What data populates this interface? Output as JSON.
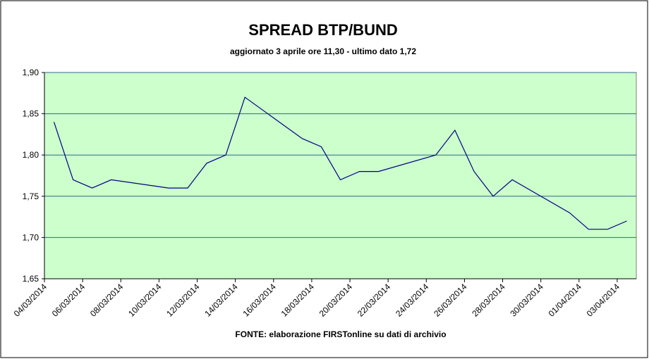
{
  "chart_data": {
    "type": "line",
    "title": "SPREAD BTP/BUND",
    "subtitle": "aggiornato 3 aprile ore 11,30 - ultimo dato 1,72",
    "source": "FONTE:  elaborazione FIRSTonline su dati di archivio",
    "x": [
      "04/03/2014",
      "05/03/2014",
      "06/03/2014",
      "07/03/2014",
      "10/03/2014",
      "11/03/2014",
      "12/03/2014",
      "13/03/2014",
      "14/03/2014",
      "17/03/2014",
      "18/03/2014",
      "19/03/2014",
      "20/03/2014",
      "21/03/2014",
      "24/03/2014",
      "25/03/2014",
      "26/03/2014",
      "27/03/2014",
      "28/03/2014",
      "31/03/2014",
      "01/04/2014",
      "02/04/2014",
      "03/04/2014"
    ],
    "series": [
      {
        "color": "#000080",
        "values": [
          1.84,
          1.77,
          1.76,
          1.77,
          1.76,
          1.76,
          1.79,
          1.8,
          1.87,
          1.82,
          1.81,
          1.77,
          1.78,
          1.78,
          1.8,
          1.83,
          1.78,
          1.75,
          1.77,
          1.73,
          1.71,
          1.71,
          1.72
        ]
      }
    ],
    "xlim": [
      "04/03/2014",
      "04/04/2014"
    ],
    "xticks": [
      "04/03/2014",
      "06/03/2014",
      "08/03/2014",
      "10/03/2014",
      "12/03/2014",
      "14/03/2014",
      "16/03/2014",
      "18/03/2014",
      "20/03/2014",
      "22/03/2014",
      "24/03/2014",
      "26/03/2014",
      "28/03/2014",
      "30/03/2014",
      "01/04/2014",
      "03/04/2014"
    ],
    "ylim": [
      1.65,
      1.9
    ],
    "yticks": [
      {
        "value": 1.65,
        "label": "1,65"
      },
      {
        "value": 1.7,
        "label": "1,70"
      },
      {
        "value": 1.75,
        "label": "1,75"
      },
      {
        "value": 1.8,
        "label": "1,80"
      },
      {
        "value": 1.85,
        "label": "1,85"
      },
      {
        "value": 1.9,
        "label": "1,90"
      }
    ],
    "grid": true,
    "plot_background": "#ccffcc",
    "grid_color": "#2e6a8c"
  }
}
